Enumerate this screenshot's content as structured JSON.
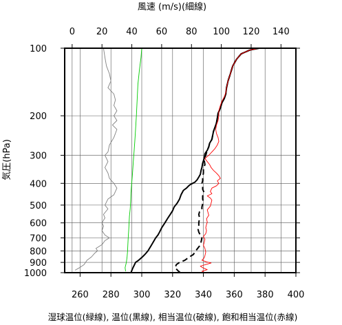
{
  "chart_data": {
    "type": "line",
    "title_top": "風速 (m/s)(細線)",
    "xlabel_bottom": "湿球温位(緑線), 温位(黒線), 相当温位(破線), 飽和相当温位(赤線)",
    "ylabel": "気圧(hPa)",
    "y_scale": "log",
    "ylim": [
      1000,
      100
    ],
    "x_bottom_range": [
      250,
      400
    ],
    "x_top_range": [
      -5,
      150
    ],
    "x_bottom_ticks": [
      "260",
      "280",
      "300",
      "320",
      "340",
      "360",
      "380",
      "400"
    ],
    "x_bottom_tick_values": [
      260,
      280,
      300,
      320,
      340,
      360,
      380,
      400
    ],
    "x_top_ticks": [
      "0",
      "20",
      "40",
      "60",
      "80",
      "100",
      "120",
      "140"
    ],
    "x_top_tick_values": [
      0,
      20,
      40,
      60,
      80,
      100,
      120,
      140
    ],
    "y_ticks": [
      "100",
      "200",
      "300",
      "400",
      "500",
      "600",
      "700",
      "800",
      "900",
      "1000"
    ],
    "y_tick_values": [
      100,
      200,
      300,
      400,
      500,
      600,
      700,
      800,
      900,
      1000
    ],
    "grid": true,
    "series": [
      {
        "name": "風速",
        "axis": "top",
        "color": "#808080",
        "style": "thin",
        "points": [
          [
            2,
            975
          ],
          [
            5,
            950
          ],
          [
            8,
            920
          ],
          [
            10,
            880
          ],
          [
            13,
            850
          ],
          [
            15,
            820
          ],
          [
            17,
            800
          ],
          [
            16,
            780
          ],
          [
            20,
            750
          ],
          [
            22,
            720
          ],
          [
            25,
            700
          ],
          [
            22,
            680
          ],
          [
            20,
            650
          ],
          [
            21,
            620
          ],
          [
            20,
            600
          ],
          [
            22,
            570
          ],
          [
            21,
            550
          ],
          [
            24,
            520
          ],
          [
            22,
            500
          ],
          [
            24,
            470
          ],
          [
            28,
            450
          ],
          [
            30,
            420
          ],
          [
            28,
            400
          ],
          [
            25,
            380
          ],
          [
            24,
            360
          ],
          [
            22,
            340
          ],
          [
            24,
            320
          ],
          [
            22,
            300
          ],
          [
            24,
            290
          ],
          [
            25,
            270
          ],
          [
            28,
            250
          ],
          [
            30,
            230
          ],
          [
            27,
            220
          ],
          [
            30,
            210
          ],
          [
            28,
            200
          ],
          [
            30,
            190
          ],
          [
            28,
            180
          ],
          [
            29,
            170
          ],
          [
            28,
            160
          ],
          [
            24,
            150
          ],
          [
            26,
            140
          ],
          [
            25,
            130
          ],
          [
            23,
            120
          ],
          [
            22,
            110
          ],
          [
            21,
            100
          ]
        ]
      },
      {
        "name": "湿球温位",
        "axis": "bottom",
        "color": "#00cc00",
        "style": "thin",
        "points": [
          [
            289.5,
            985
          ],
          [
            289.2,
            950
          ],
          [
            290.0,
            900
          ],
          [
            290.5,
            850
          ],
          [
            290.8,
            800
          ],
          [
            291.0,
            750
          ],
          [
            291.2,
            700
          ],
          [
            291.5,
            650
          ],
          [
            291.8,
            600
          ],
          [
            292.0,
            560
          ],
          [
            292.5,
            520
          ],
          [
            292.8,
            480
          ],
          [
            293.0,
            440
          ],
          [
            293.5,
            400
          ],
          [
            294.0,
            360
          ],
          [
            294.5,
            320
          ],
          [
            295.0,
            290
          ],
          [
            295.5,
            260
          ],
          [
            296.0,
            230
          ],
          [
            296.5,
            200
          ],
          [
            297.0,
            170
          ],
          [
            297.5,
            145
          ],
          [
            298.5,
            125
          ],
          [
            299.5,
            110
          ],
          [
            300.0,
            100
          ]
        ]
      },
      {
        "name": "温位",
        "axis": "bottom",
        "color": "#000000",
        "style": "solid",
        "points": [
          [
            293.0,
            1000
          ],
          [
            294.0,
            960
          ],
          [
            295.0,
            930
          ],
          [
            296.0,
            900
          ],
          [
            298.0,
            880
          ],
          [
            300.5,
            850
          ],
          [
            302.0,
            830
          ],
          [
            304.0,
            800
          ],
          [
            306.0,
            760
          ],
          [
            307.5,
            730
          ],
          [
            309.0,
            700
          ],
          [
            310.5,
            680
          ],
          [
            311.5,
            660
          ],
          [
            313.0,
            630
          ],
          [
            315.0,
            600
          ],
          [
            317.0,
            570
          ],
          [
            318.5,
            550
          ],
          [
            320.0,
            530
          ],
          [
            321.0,
            510
          ],
          [
            323.0,
            490
          ],
          [
            324.5,
            470
          ],
          [
            325.5,
            450
          ],
          [
            327.0,
            430
          ],
          [
            329.0,
            420
          ],
          [
            330.5,
            410
          ],
          [
            331.5,
            405
          ],
          [
            333.0,
            400
          ],
          [
            334.5,
            395
          ],
          [
            336.0,
            385
          ],
          [
            337.0,
            375
          ],
          [
            338.0,
            365
          ],
          [
            338.5,
            350
          ],
          [
            339.0,
            340
          ],
          [
            339.5,
            325
          ],
          [
            340.5,
            310
          ],
          [
            341.0,
            295
          ],
          [
            342.5,
            285
          ],
          [
            343.5,
            275
          ],
          [
            344.0,
            265
          ],
          [
            345.5,
            255
          ],
          [
            346.0,
            245
          ],
          [
            346.5,
            235
          ],
          [
            347.5,
            225
          ],
          [
            348.5,
            215
          ],
          [
            349.0,
            205
          ],
          [
            349.5,
            195
          ],
          [
            351.0,
            185
          ],
          [
            352.0,
            175
          ],
          [
            353.5,
            168
          ],
          [
            354.5,
            160
          ],
          [
            355.0,
            150
          ],
          [
            356.0,
            140
          ],
          [
            357.5,
            130
          ],
          [
            359.0,
            120
          ],
          [
            361.5,
            112
          ],
          [
            364.5,
            106
          ],
          [
            370.0,
            102
          ],
          [
            376.0,
            100
          ]
        ]
      },
      {
        "name": "相当温位",
        "axis": "bottom",
        "color": "#000000",
        "style": "dashed",
        "points": [
          [
            325.0,
            1000
          ],
          [
            323.5,
            980
          ],
          [
            321.5,
            950
          ],
          [
            322.5,
            920
          ],
          [
            324.5,
            900
          ],
          [
            328.0,
            880
          ],
          [
            331.0,
            850
          ],
          [
            333.5,
            830
          ],
          [
            335.0,
            800
          ],
          [
            337.5,
            760
          ],
          [
            338.5,
            730
          ],
          [
            339.0,
            700
          ],
          [
            338.0,
            680
          ],
          [
            337.0,
            660
          ],
          [
            336.5,
            640
          ],
          [
            337.0,
            620
          ],
          [
            337.0,
            600
          ],
          [
            337.5,
            570
          ],
          [
            337.0,
            550
          ],
          [
            337.5,
            535
          ],
          [
            339.0,
            525
          ],
          [
            339.0,
            510
          ],
          [
            339.5,
            495
          ],
          [
            340.0,
            485
          ],
          [
            339.5,
            470
          ],
          [
            339.5,
            455
          ],
          [
            340.5,
            440
          ],
          [
            339.5,
            425
          ],
          [
            339.5,
            410
          ],
          [
            339.0,
            400
          ],
          [
            339.5,
            390
          ],
          [
            339.5,
            375
          ],
          [
            340.0,
            360
          ],
          [
            340.0,
            345
          ],
          [
            341.0,
            330
          ],
          [
            340.5,
            315
          ],
          [
            341.5,
            300
          ],
          [
            342.5,
            285
          ],
          [
            343.5,
            275
          ],
          [
            344.0,
            265
          ],
          [
            345.5,
            255
          ],
          [
            346.0,
            245
          ],
          [
            346.5,
            235
          ],
          [
            347.5,
            225
          ],
          [
            348.5,
            215
          ],
          [
            349.0,
            205
          ],
          [
            349.5,
            195
          ],
          [
            351.0,
            185
          ],
          [
            352.0,
            175
          ],
          [
            353.5,
            168
          ],
          [
            354.5,
            160
          ],
          [
            355.0,
            150
          ],
          [
            356.0,
            140
          ],
          [
            357.5,
            130
          ],
          [
            359.0,
            120
          ],
          [
            361.5,
            112
          ],
          [
            364.5,
            106
          ],
          [
            370.0,
            102
          ],
          [
            376.0,
            100
          ]
        ]
      },
      {
        "name": "飽和相当温位",
        "axis": "bottom",
        "color": "#ff0000",
        "style": "thin",
        "points": [
          [
            341.0,
            1000
          ],
          [
            339.0,
            985
          ],
          [
            342.5,
            970
          ],
          [
            339.5,
            950
          ],
          [
            338.0,
            935
          ],
          [
            341.5,
            920
          ],
          [
            345.0,
            905
          ],
          [
            342.0,
            895
          ],
          [
            339.0,
            880
          ],
          [
            340.5,
            860
          ],
          [
            341.0,
            840
          ],
          [
            341.5,
            810
          ],
          [
            341.0,
            780
          ],
          [
            340.0,
            755
          ],
          [
            340.5,
            735
          ],
          [
            341.0,
            710
          ],
          [
            340.0,
            690
          ],
          [
            341.5,
            670
          ],
          [
            342.0,
            650
          ],
          [
            341.5,
            630
          ],
          [
            342.0,
            610
          ],
          [
            342.5,
            595
          ],
          [
            342.0,
            575
          ],
          [
            343.5,
            555
          ],
          [
            343.0,
            540
          ],
          [
            342.5,
            525
          ],
          [
            344.5,
            505
          ],
          [
            345.0,
            490
          ],
          [
            345.5,
            475
          ],
          [
            344.5,
            465
          ],
          [
            342.5,
            455
          ],
          [
            345.5,
            445
          ],
          [
            344.5,
            435
          ],
          [
            345.5,
            420
          ],
          [
            348.5,
            410
          ],
          [
            350.0,
            400
          ],
          [
            349.0,
            390
          ],
          [
            351.0,
            380
          ],
          [
            350.0,
            370
          ],
          [
            348.5,
            360
          ],
          [
            346.5,
            350
          ],
          [
            345.0,
            340
          ],
          [
            344.0,
            330
          ],
          [
            342.5,
            320
          ],
          [
            341.0,
            310
          ],
          [
            343.5,
            300
          ],
          [
            345.5,
            290
          ],
          [
            347.5,
            280
          ],
          [
            349.0,
            270
          ],
          [
            350.0,
            260
          ],
          [
            349.5,
            250
          ],
          [
            348.5,
            240
          ],
          [
            348.0,
            230
          ],
          [
            348.5,
            220
          ],
          [
            349.5,
            210
          ],
          [
            350.0,
            200
          ],
          [
            350.0,
            190
          ],
          [
            351.0,
            180
          ],
          [
            352.0,
            172
          ],
          [
            353.5,
            165
          ],
          [
            354.5,
            158
          ],
          [
            355.0,
            150
          ],
          [
            356.0,
            140
          ],
          [
            357.5,
            130
          ],
          [
            359.0,
            120
          ],
          [
            361.5,
            112
          ],
          [
            364.5,
            106
          ],
          [
            370.0,
            102
          ],
          [
            376.0,
            100
          ]
        ]
      }
    ]
  }
}
